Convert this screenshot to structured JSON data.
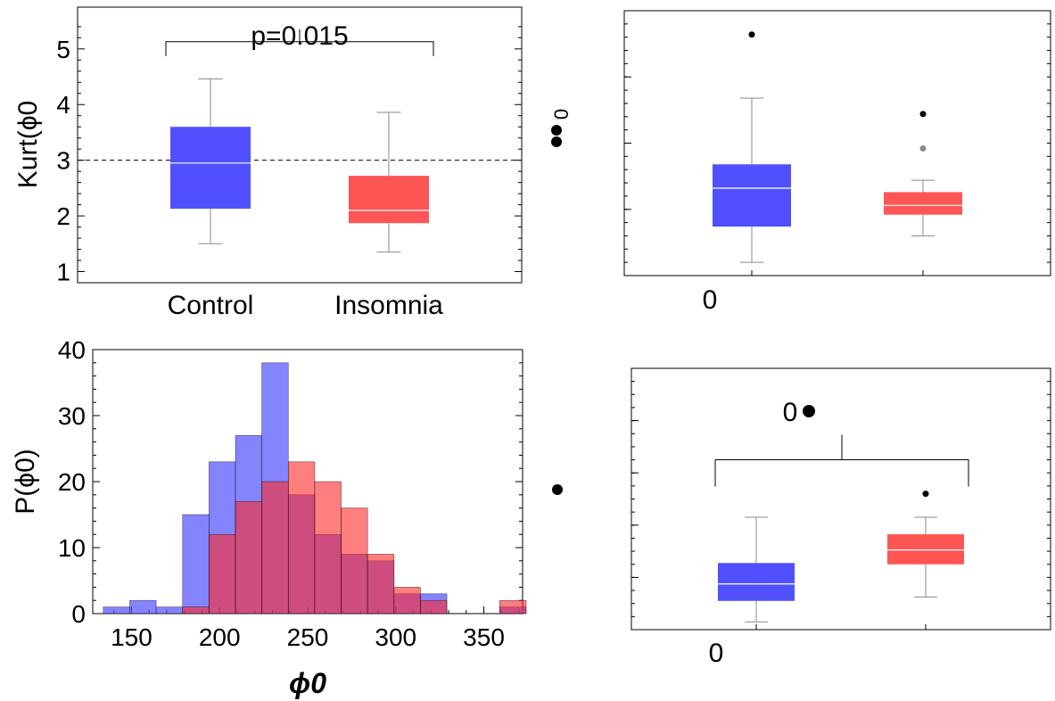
{
  "colors": {
    "control": "#5050ff",
    "insomnia": "#ff5555",
    "whisker": "#8a8a8a"
  },
  "chart_data": [
    {
      "type": "box",
      "ylabel": "Kurt(ϕ0",
      "yticks": [
        1,
        2,
        3,
        4,
        5
      ],
      "ylim": [
        0.8,
        5.75
      ],
      "reference_line": 3,
      "categories": [
        "Control",
        "Insomnia"
      ],
      "boxes": [
        {
          "name": "Control",
          "min": 1.5,
          "q1": 2.13,
          "median": 2.95,
          "q3": 3.6,
          "max": 4.46,
          "outliers": []
        },
        {
          "name": "Insomnia",
          "min": 1.35,
          "q1": 1.87,
          "median": 2.1,
          "q3": 2.72,
          "max": 3.86,
          "outliers": []
        }
      ],
      "annotation": "p=0.015",
      "grid": false
    },
    {
      "type": "box",
      "xticklabel": "0",
      "ylim": [
        0,
        10
      ],
      "boxes": [
        {
          "name": "Control",
          "min": 0.5,
          "q1": 1.85,
          "median": 3.3,
          "q3": 4.2,
          "max": 6.7,
          "outliers": [
            9.1
          ]
        },
        {
          "name": "Insomnia",
          "min": 1.5,
          "q1": 2.3,
          "median": 2.65,
          "q3": 3.15,
          "max": 3.6,
          "outliers": [
            4.8,
            6.1
          ]
        }
      ],
      "legend_marks": [
        "●●",
        "0"
      ],
      "grid": false
    },
    {
      "type": "histogram",
      "xlabel": "ϕ0",
      "ylabel": "P(ϕ0)",
      "xticks": [
        150,
        200,
        250,
        300,
        350
      ],
      "yticks": [
        0,
        10,
        20,
        30,
        40
      ],
      "xlim": [
        128,
        372
      ],
      "ylim": [
        0,
        40
      ],
      "bin_width": 15,
      "bin_starts": [
        134,
        149,
        164,
        179,
        194,
        209,
        224,
        239,
        254,
        269,
        284,
        299,
        314,
        329,
        344,
        359
      ],
      "series": [
        {
          "name": "Control",
          "values": [
            1,
            2,
            1,
            15,
            23,
            27,
            38,
            18,
            12,
            9,
            8,
            3,
            3,
            0,
            0,
            1
          ]
        },
        {
          "name": "Insomnia",
          "values": [
            0,
            0,
            0,
            1,
            12,
            17,
            20,
            23,
            20,
            16,
            9,
            4,
            2,
            0,
            0,
            2
          ]
        }
      ],
      "grid": false
    },
    {
      "type": "box",
      "xticklabel": "0",
      "ylim": [
        0,
        10
      ],
      "boxes": [
        {
          "name": "Control",
          "min": 0.3,
          "q1": 1.1,
          "median": 1.75,
          "q3": 2.55,
          "max": 4.3,
          "outliers": []
        },
        {
          "name": "Insomnia",
          "min": 1.25,
          "q1": 2.5,
          "median": 3.05,
          "q3": 3.65,
          "max": 4.3,
          "outliers": [
            5.2
          ]
        }
      ],
      "annotation": "0",
      "legend_marks": [
        "●"
      ],
      "grid": false
    }
  ]
}
